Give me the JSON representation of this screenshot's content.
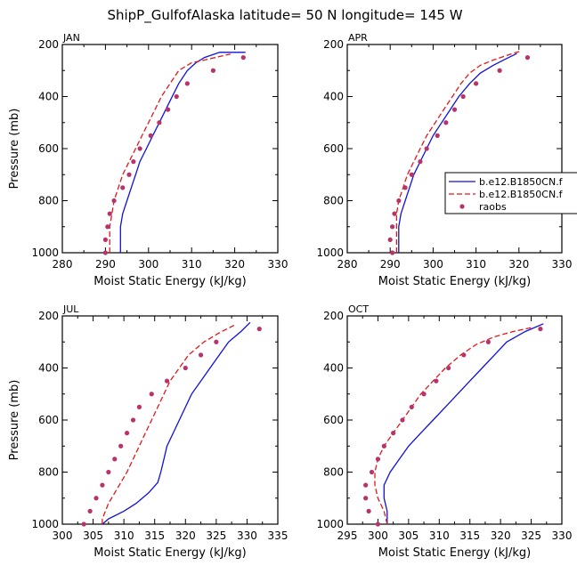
{
  "figure": {
    "title": "ShipP_GulfofAlaska  latitude= 50 N longitude= 145 W",
    "ylabel": "Pressure (mb)",
    "xlabel": "Moist Static Energy (kJ/kg)"
  },
  "legend": {
    "entries": [
      {
        "label": "b.e12.B1850CN.f",
        "style": "solid",
        "color": "#1010d8"
      },
      {
        "label": "b.e12.B1850CN.f",
        "style": "dashed",
        "color": "#e01818"
      },
      {
        "label": "raobs",
        "style": "dots",
        "color": "#b8336a"
      }
    ]
  },
  "colors": {
    "model1": "#1010d8",
    "model2": "#e01818",
    "obs": "#b8336a",
    "axis": "#000000"
  },
  "chart_data": [
    {
      "type": "line",
      "panel": "JAN",
      "xlim": [
        280,
        330
      ],
      "ylim": [
        1000,
        200
      ],
      "xticks": [
        280,
        290,
        300,
        310,
        320,
        330
      ],
      "yticks": [
        200,
        400,
        600,
        800,
        1000
      ],
      "xlabel": "Moist Static Energy (kJ/kg)",
      "ylabel": "Pressure (mb)",
      "series": [
        {
          "name": "b.e12.B1850CN.f",
          "style": "solid",
          "color": "#1010d8",
          "points": [
            [
              293.5,
              1000
            ],
            [
              293.5,
              950
            ],
            [
              293.5,
              900
            ],
            [
              294,
              850
            ],
            [
              295,
              800
            ],
            [
              296,
              750
            ],
            [
              297,
              700
            ],
            [
              298,
              650
            ],
            [
              299.5,
              600
            ],
            [
              301,
              550
            ],
            [
              302.5,
              500
            ],
            [
              304,
              450
            ],
            [
              305.5,
              400
            ],
            [
              307,
              350
            ],
            [
              309,
              300
            ],
            [
              311,
              270
            ],
            [
              313,
              250
            ],
            [
              316.5,
              230
            ],
            [
              322.5,
              230
            ]
          ]
        },
        {
          "name": "b.e12.B1850CN.f",
          "style": "dashed",
          "color": "#e01818",
          "points": [
            [
              291,
              1000
            ],
            [
              291,
              950
            ],
            [
              291,
              900
            ],
            [
              291.5,
              850
            ],
            [
              292,
              800
            ],
            [
              293,
              750
            ],
            [
              294,
              700
            ],
            [
              295.5,
              650
            ],
            [
              297,
              600
            ],
            [
              298.5,
              550
            ],
            [
              300,
              500
            ],
            [
              301.5,
              450
            ],
            [
              303,
              400
            ],
            [
              305,
              350
            ],
            [
              307,
              300
            ],
            [
              310,
              270
            ],
            [
              313,
              260
            ],
            [
              316,
              248
            ],
            [
              319,
              237
            ]
          ]
        },
        {
          "name": "raobs",
          "style": "dots",
          "color": "#b8336a",
          "points": [
            [
              290,
              1000
            ],
            [
              290,
              950
            ],
            [
              290.5,
              900
            ],
            [
              291,
              850
            ],
            [
              292,
              800
            ],
            [
              294,
              750
            ],
            [
              295.5,
              700
            ],
            [
              296.5,
              650
            ],
            [
              298,
              600
            ],
            [
              300.5,
              550
            ],
            [
              302.5,
              500
            ],
            [
              304.5,
              450
            ],
            [
              306.5,
              400
            ],
            [
              309,
              350
            ],
            [
              315,
              300
            ],
            [
              322,
              250
            ]
          ]
        }
      ]
    },
    {
      "type": "line",
      "panel": "APR",
      "xlim": [
        280,
        330
      ],
      "ylim": [
        1000,
        200
      ],
      "xticks": [
        280,
        290,
        300,
        310,
        320,
        330
      ],
      "yticks": [
        200,
        400,
        600,
        800,
        1000
      ],
      "xlabel": "Moist Static Energy (kJ/kg)",
      "ylabel": "Pressure (mb)",
      "series": [
        {
          "name": "b.e12.B1850CN.f",
          "style": "solid",
          "color": "#1010d8",
          "points": [
            [
              292,
              1000
            ],
            [
              292,
              950
            ],
            [
              292,
              900
            ],
            [
              292.5,
              850
            ],
            [
              293.5,
              800
            ],
            [
              294.5,
              750
            ],
            [
              295.5,
              700
            ],
            [
              297,
              650
            ],
            [
              298.5,
              600
            ],
            [
              300,
              550
            ],
            [
              302,
              500
            ],
            [
              304,
              450
            ],
            [
              306,
              400
            ],
            [
              308.5,
              350
            ],
            [
              311,
              310
            ],
            [
              314,
              280
            ],
            [
              317,
              255
            ],
            [
              319.5,
              235
            ]
          ]
        },
        {
          "name": "b.e12.B1850CN.f",
          "style": "dashed",
          "color": "#e01818",
          "points": [
            [
              291.5,
              1000
            ],
            [
              291.5,
              950
            ],
            [
              291.5,
              900
            ],
            [
              291.5,
              850
            ],
            [
              292,
              800
            ],
            [
              293,
              750
            ],
            [
              294,
              700
            ],
            [
              295.5,
              650
            ],
            [
              297,
              600
            ],
            [
              298.5,
              550
            ],
            [
              300.5,
              500
            ],
            [
              302.5,
              450
            ],
            [
              304.5,
              400
            ],
            [
              306.5,
              350
            ],
            [
              308.5,
              310
            ],
            [
              311,
              280
            ],
            [
              314,
              260
            ],
            [
              317.5,
              240
            ],
            [
              320.5,
              225
            ]
          ]
        },
        {
          "name": "raobs",
          "style": "dots",
          "color": "#b8336a",
          "points": [
            [
              290.5,
              1000
            ],
            [
              290,
              950
            ],
            [
              290.5,
              900
            ],
            [
              291,
              850
            ],
            [
              292,
              800
            ],
            [
              293.5,
              750
            ],
            [
              295,
              700
            ],
            [
              297,
              650
            ],
            [
              298.5,
              600
            ],
            [
              301,
              550
            ],
            [
              303,
              500
            ],
            [
              305,
              450
            ],
            [
              307,
              400
            ],
            [
              310,
              350
            ],
            [
              315.5,
              300
            ],
            [
              322,
              250
            ]
          ]
        }
      ]
    },
    {
      "type": "line",
      "panel": "JUL",
      "xlim": [
        300,
        335
      ],
      "ylim": [
        1000,
        200
      ],
      "xticks": [
        300,
        305,
        310,
        315,
        320,
        325,
        330,
        335
      ],
      "yticks": [
        200,
        400,
        600,
        800,
        1000
      ],
      "xlabel": "Moist Static Energy (kJ/kg)",
      "ylabel": "Pressure (mb)",
      "series": [
        {
          "name": "b.e12.B1850CN.f",
          "style": "solid",
          "color": "#1010d8",
          "points": [
            [
              306.5,
              1000
            ],
            [
              307.5,
              980
            ],
            [
              310,
              950
            ],
            [
              312,
              920
            ],
            [
              314,
              880
            ],
            [
              315.5,
              840
            ],
            [
              316,
              800
            ],
            [
              316.5,
              750
            ],
            [
              317,
              700
            ],
            [
              318,
              650
            ],
            [
              319,
              600
            ],
            [
              320,
              550
            ],
            [
              321,
              500
            ],
            [
              322.5,
              450
            ],
            [
              324,
              400
            ],
            [
              325.5,
              350
            ],
            [
              327,
              300
            ],
            [
              329,
              260
            ],
            [
              330.5,
              225
            ]
          ]
        },
        {
          "name": "b.e12.B1850CN.f",
          "style": "dashed",
          "color": "#e01818",
          "points": [
            [
              306.5,
              1000
            ],
            [
              306.5,
              980
            ],
            [
              307,
              950
            ],
            [
              307.5,
              920
            ],
            [
              308.5,
              880
            ],
            [
              309.5,
              840
            ],
            [
              310.5,
              800
            ],
            [
              311.5,
              750
            ],
            [
              312.5,
              700
            ],
            [
              313.5,
              650
            ],
            [
              314.5,
              600
            ],
            [
              315.5,
              550
            ],
            [
              316.5,
              500
            ],
            [
              317.5,
              450
            ],
            [
              319,
              400
            ],
            [
              320.5,
              350
            ],
            [
              323,
              300
            ],
            [
              325.5,
              265
            ],
            [
              328,
              235
            ]
          ]
        },
        {
          "name": "raobs",
          "style": "dots",
          "color": "#b8336a",
          "points": [
            [
              303.5,
              1000
            ],
            [
              304.5,
              950
            ],
            [
              305.5,
              900
            ],
            [
              306.5,
              850
            ],
            [
              307.5,
              800
            ],
            [
              308.5,
              750
            ],
            [
              309.5,
              700
            ],
            [
              310.5,
              650
            ],
            [
              311.5,
              600
            ],
            [
              312.5,
              550
            ],
            [
              314.5,
              500
            ],
            [
              317,
              450
            ],
            [
              320,
              400
            ],
            [
              322.5,
              350
            ],
            [
              325,
              300
            ],
            [
              332,
              250
            ]
          ]
        }
      ]
    },
    {
      "type": "line",
      "panel": "OCT",
      "xlim": [
        295,
        330
      ],
      "ylim": [
        1000,
        200
      ],
      "xticks": [
        295,
        300,
        305,
        310,
        315,
        320,
        325,
        330
      ],
      "yticks": [
        200,
        400,
        600,
        800,
        1000
      ],
      "xlabel": "Moist Static Energy (kJ/kg)",
      "ylabel": "Pressure (mb)",
      "series": [
        {
          "name": "b.e12.B1850CN.f",
          "style": "solid",
          "color": "#1010d8",
          "points": [
            [
              301.5,
              1000
            ],
            [
              301.5,
              950
            ],
            [
              301,
              900
            ],
            [
              301,
              850
            ],
            [
              302,
              800
            ],
            [
              303.5,
              750
            ],
            [
              305,
              700
            ],
            [
              307,
              650
            ],
            [
              309,
              600
            ],
            [
              311,
              550
            ],
            [
              313,
              500
            ],
            [
              315,
              450
            ],
            [
              317,
              400
            ],
            [
              319,
              350
            ],
            [
              321,
              300
            ],
            [
              324,
              260
            ],
            [
              327,
              230
            ]
          ]
        },
        {
          "name": "b.e12.B1850CN.f",
          "style": "dashed",
          "color": "#e01818",
          "points": [
            [
              301.5,
              1000
            ],
            [
              301,
              950
            ],
            [
              300,
              900
            ],
            [
              299.5,
              850
            ],
            [
              299.5,
              800
            ],
            [
              300,
              750
            ],
            [
              301,
              700
            ],
            [
              302.5,
              650
            ],
            [
              304,
              600
            ],
            [
              305.5,
              550
            ],
            [
              307,
              500
            ],
            [
              309,
              450
            ],
            [
              311,
              400
            ],
            [
              313.5,
              350
            ],
            [
              316,
              310
            ],
            [
              319,
              280
            ],
            [
              322,
              260
            ],
            [
              325,
              245
            ]
          ]
        },
        {
          "name": "raobs",
          "style": "dots",
          "color": "#b8336a",
          "points": [
            [
              300,
              1000
            ],
            [
              298.5,
              950
            ],
            [
              298,
              900
            ],
            [
              298,
              850
            ],
            [
              299,
              800
            ],
            [
              300,
              750
            ],
            [
              301,
              700
            ],
            [
              302.5,
              650
            ],
            [
              304,
              600
            ],
            [
              305.5,
              550
            ],
            [
              307.5,
              500
            ],
            [
              309.5,
              450
            ],
            [
              311.5,
              400
            ],
            [
              314,
              350
            ],
            [
              318,
              300
            ],
            [
              326.5,
              250
            ]
          ]
        }
      ]
    }
  ]
}
